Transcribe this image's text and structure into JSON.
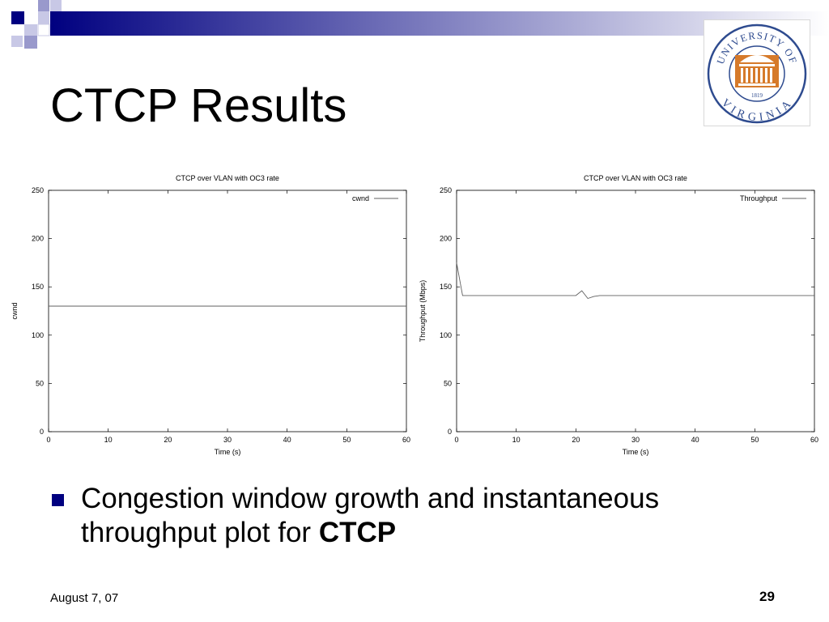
{
  "slide": {
    "title": "CTCP Results",
    "bullet": {
      "text": "Congestion window growth and instantaneous throughput plot for ",
      "emphasis": "CTCP"
    },
    "footer": {
      "date": "August 7, 07",
      "page": "29"
    },
    "colors": {
      "accent": "#000080",
      "light_accent": "#9999cc",
      "logo_blue": "#2e4b8f",
      "logo_orange": "#d67a2a"
    }
  },
  "logo": {
    "top_text": "UNIVERSITY OF",
    "bottom_text": "VIRGINIA",
    "year": "1819",
    "icon": "rotunda-seal-icon"
  },
  "chart_data": [
    {
      "type": "line",
      "title": "CTCP over VLAN with OC3 rate",
      "xlabel": "Time (s)",
      "ylabel": "cwnd",
      "xlim": [
        0,
        60
      ],
      "ylim": [
        0,
        250
      ],
      "xticks": [
        "0",
        "10",
        "20",
        "30",
        "40",
        "50",
        "60"
      ],
      "yticks": [
        "0",
        "50",
        "100",
        "150",
        "200",
        "250"
      ],
      "legend_position": "top-right",
      "grid": false,
      "series": [
        {
          "name": "cwnd",
          "x": [
            0,
            60
          ],
          "y": [
            130,
            130
          ]
        }
      ]
    },
    {
      "type": "line",
      "title": "CTCP over VLAN with OC3 rate",
      "xlabel": "Time (s)",
      "ylabel": "Throughput (Mbps)",
      "xlim": [
        0,
        60
      ],
      "ylim": [
        0,
        250
      ],
      "xticks": [
        "0",
        "10",
        "20",
        "30",
        "40",
        "50",
        "60"
      ],
      "yticks": [
        "0",
        "50",
        "100",
        "150",
        "200",
        "250"
      ],
      "legend_position": "top-right",
      "grid": false,
      "series": [
        {
          "name": "Throughput",
          "x": [
            0,
            1,
            2,
            5,
            10,
            15,
            20,
            21,
            22,
            23,
            24,
            30,
            40,
            50,
            60
          ],
          "y": [
            175,
            141,
            141,
            141,
            141,
            141,
            141,
            146,
            138,
            140,
            141,
            141,
            141,
            141,
            141
          ]
        }
      ]
    }
  ]
}
